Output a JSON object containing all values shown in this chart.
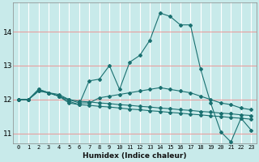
{
  "xlabel": "Humidex (Indice chaleur)",
  "bg_color": "#c8eaea",
  "hgrid_color": "#e8a0a0",
  "vgrid_color": "#ffffff",
  "line_color": "#1a7070",
  "xlim": [
    -0.5,
    23.5
  ],
  "ylim": [
    10.7,
    14.85
  ],
  "yticks": [
    11,
    12,
    13,
    14
  ],
  "xtick_labels": [
    "0",
    "1",
    "2",
    "3",
    "4",
    "5",
    "6",
    "7",
    "8",
    "9",
    "10",
    "11",
    "12",
    "13",
    "14",
    "15",
    "16",
    "17",
    "18",
    "19",
    "20",
    "21",
    "22",
    "23"
  ],
  "series1_x": [
    0,
    1,
    2,
    3,
    4,
    5,
    6,
    7,
    8,
    9,
    10,
    11,
    12,
    13,
    14,
    15,
    16,
    17,
    18,
    19,
    20,
    21,
    22,
    23
  ],
  "series1_y": [
    12.0,
    12.0,
    12.3,
    12.2,
    12.1,
    11.9,
    11.85,
    12.55,
    12.6,
    13.0,
    12.3,
    13.1,
    13.3,
    13.75,
    14.55,
    14.45,
    14.2,
    14.2,
    12.9,
    11.9,
    11.05,
    10.75,
    11.45,
    11.1
  ],
  "series2_x": [
    0,
    1,
    2,
    3,
    4,
    5,
    6,
    7,
    8,
    9,
    10,
    11,
    12,
    13,
    14,
    15,
    16,
    17,
    18,
    19,
    20,
    21,
    22,
    23
  ],
  "series2_y": [
    12.0,
    12.0,
    12.3,
    12.2,
    12.15,
    12.0,
    11.9,
    11.9,
    12.05,
    12.1,
    12.15,
    12.2,
    12.25,
    12.3,
    12.35,
    12.3,
    12.25,
    12.2,
    12.1,
    12.0,
    11.9,
    11.85,
    11.75,
    11.7
  ],
  "series3_x": [
    0,
    1,
    2,
    3,
    4,
    5,
    6,
    7,
    8,
    9,
    10,
    11,
    12,
    13,
    14,
    15,
    16,
    17,
    18,
    19,
    20,
    21,
    22,
    23
  ],
  "series3_y": [
    12.0,
    12.0,
    12.25,
    12.2,
    12.1,
    12.0,
    11.95,
    11.93,
    11.9,
    11.88,
    11.85,
    11.83,
    11.8,
    11.78,
    11.75,
    11.73,
    11.7,
    11.68,
    11.65,
    11.63,
    11.6,
    11.58,
    11.55,
    11.53
  ],
  "series4_x": [
    0,
    1,
    2,
    3,
    4,
    5,
    6,
    7,
    8,
    9,
    10,
    11,
    12,
    13,
    14,
    15,
    16,
    17,
    18,
    19,
    20,
    21,
    22,
    23
  ],
  "series4_y": [
    12.0,
    12.0,
    12.25,
    12.2,
    12.1,
    11.95,
    11.85,
    11.83,
    11.8,
    11.78,
    11.75,
    11.72,
    11.7,
    11.67,
    11.65,
    11.62,
    11.6,
    11.57,
    11.55,
    11.52,
    11.5,
    11.47,
    11.45,
    11.42
  ]
}
